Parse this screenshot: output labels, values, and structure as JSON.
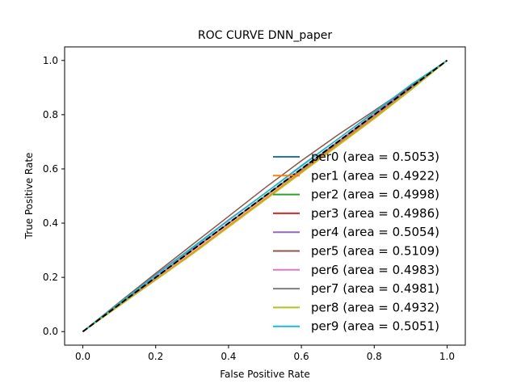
{
  "chart_data": {
    "type": "line",
    "title": "ROC CURVE DNN_paper",
    "xlabel": "False Positive Rate",
    "ylabel": "True Positive Rate",
    "xlim": [
      -0.05,
      1.05
    ],
    "ylim": [
      -0.05,
      1.05
    ],
    "xticks": [
      "0.0",
      "0.2",
      "0.4",
      "0.6",
      "0.8",
      "1.0"
    ],
    "yticks": [
      "0.0",
      "0.2",
      "0.4",
      "0.6",
      "0.8",
      "1.0"
    ],
    "legend_position": "lower-right",
    "grid": false,
    "reference_line": {
      "style": "dashed",
      "color": "#000000",
      "x": [
        0,
        1
      ],
      "y": [
        0,
        1
      ]
    },
    "series": [
      {
        "name": "per0 (area = 0.5053)",
        "color": "#1f77b4",
        "x": [
          0,
          0.1,
          0.2,
          0.3,
          0.4,
          0.5,
          0.6,
          0.7,
          0.8,
          0.9,
          1.0
        ],
        "y": [
          0,
          0.105,
          0.208,
          0.308,
          0.41,
          0.51,
          0.612,
          0.71,
          0.808,
          0.905,
          1.0
        ]
      },
      {
        "name": "per1 (area = 0.4922)",
        "color": "#ff7f0e",
        "x": [
          0,
          0.1,
          0.2,
          0.3,
          0.4,
          0.5,
          0.6,
          0.7,
          0.8,
          0.9,
          1.0
        ],
        "y": [
          0,
          0.095,
          0.192,
          0.29,
          0.39,
          0.49,
          0.59,
          0.69,
          0.79,
          0.892,
          1.0
        ]
      },
      {
        "name": "per2 (area = 0.4998)",
        "color": "#2ca02c",
        "x": [
          0,
          0.1,
          0.2,
          0.3,
          0.4,
          0.5,
          0.6,
          0.7,
          0.8,
          0.9,
          1.0
        ],
        "y": [
          0,
          0.1,
          0.2,
          0.3,
          0.4,
          0.5,
          0.6,
          0.7,
          0.8,
          0.9,
          1.0
        ]
      },
      {
        "name": "per3 (area = 0.4986)",
        "color": "#d62728",
        "x": [
          0,
          0.1,
          0.2,
          0.3,
          0.4,
          0.5,
          0.6,
          0.7,
          0.8,
          0.9,
          1.0
        ],
        "y": [
          0,
          0.098,
          0.198,
          0.298,
          0.398,
          0.498,
          0.598,
          0.7,
          0.8,
          0.9,
          1.0
        ]
      },
      {
        "name": "per4 (area = 0.5054)",
        "color": "#9467bd",
        "x": [
          0,
          0.1,
          0.2,
          0.3,
          0.4,
          0.5,
          0.6,
          0.7,
          0.8,
          0.9,
          1.0
        ],
        "y": [
          0,
          0.106,
          0.21,
          0.31,
          0.412,
          0.51,
          0.61,
          0.71,
          0.808,
          0.905,
          1.0
        ]
      },
      {
        "name": "per5 (area = 0.5109)",
        "color": "#8c564b",
        "x": [
          0,
          0.1,
          0.2,
          0.3,
          0.4,
          0.5,
          0.6,
          0.7,
          0.8,
          0.9,
          1.0
        ],
        "y": [
          0,
          0.108,
          0.215,
          0.32,
          0.425,
          0.53,
          0.63,
          0.725,
          0.815,
          0.905,
          1.0
        ]
      },
      {
        "name": "per6 (area = 0.4983)",
        "color": "#e377c2",
        "x": [
          0,
          0.1,
          0.2,
          0.3,
          0.4,
          0.5,
          0.6,
          0.7,
          0.8,
          0.9,
          1.0
        ],
        "y": [
          0,
          0.098,
          0.198,
          0.298,
          0.398,
          0.498,
          0.598,
          0.698,
          0.798,
          0.9,
          1.0
        ]
      },
      {
        "name": "per7 (area = 0.4981)",
        "color": "#7f7f7f",
        "x": [
          0,
          0.1,
          0.2,
          0.3,
          0.4,
          0.5,
          0.6,
          0.7,
          0.8,
          0.9,
          1.0
        ],
        "y": [
          0,
          0.1,
          0.2,
          0.302,
          0.4,
          0.498,
          0.596,
          0.696,
          0.796,
          0.898,
          1.0
        ]
      },
      {
        "name": "per8 (area = 0.4932)",
        "color": "#bcbd22",
        "x": [
          0,
          0.1,
          0.2,
          0.3,
          0.4,
          0.5,
          0.6,
          0.7,
          0.8,
          0.9,
          1.0
        ],
        "y": [
          0,
          0.095,
          0.19,
          0.285,
          0.385,
          0.485,
          0.585,
          0.685,
          0.785,
          0.89,
          1.0
        ]
      },
      {
        "name": "per9 (area = 0.5051)",
        "color": "#17becf",
        "x": [
          0,
          0.1,
          0.2,
          0.3,
          0.4,
          0.5,
          0.6,
          0.7,
          0.8,
          0.9,
          1.0
        ],
        "y": [
          0,
          0.105,
          0.208,
          0.31,
          0.41,
          0.51,
          0.61,
          0.71,
          0.81,
          0.91,
          1.0
        ]
      }
    ]
  }
}
